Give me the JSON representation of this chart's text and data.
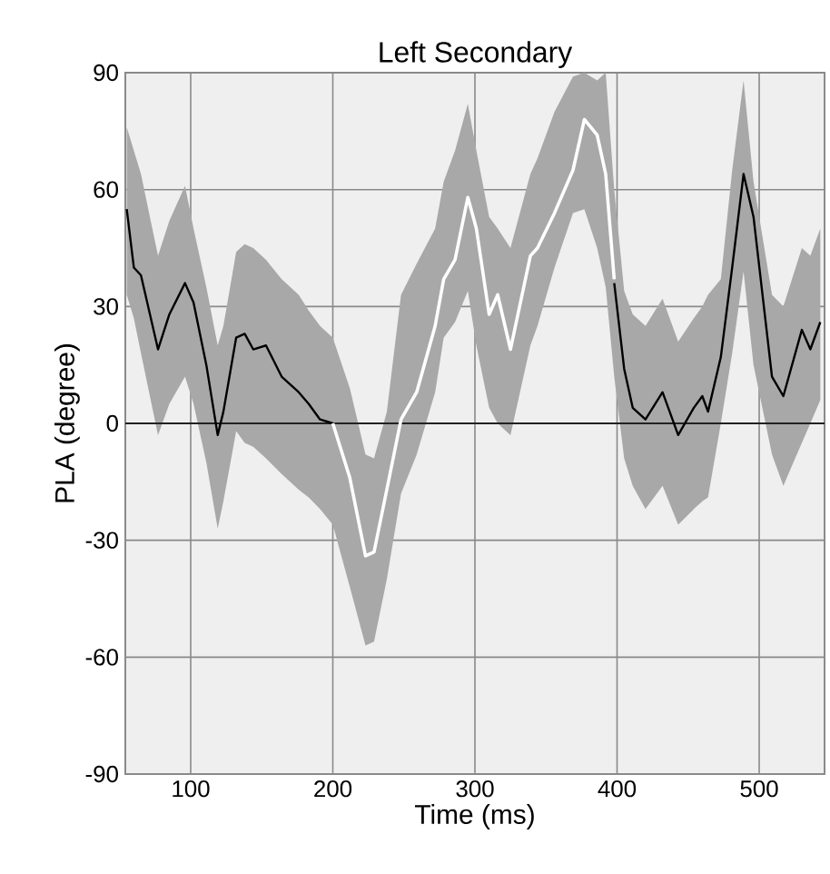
{
  "chart_data": {
    "type": "line",
    "title": "Left Secondary",
    "xlabel": "Time (ms)",
    "ylabel": "PLA (degree)",
    "x": [
      55,
      60,
      65,
      77,
      85,
      96,
      102,
      111,
      119,
      123,
      132,
      138,
      144,
      153,
      164,
      176,
      183,
      191,
      200,
      212,
      223,
      229,
      238,
      248,
      259,
      272,
      278,
      286,
      295,
      301,
      310,
      316,
      325,
      339,
      344,
      356,
      369,
      377,
      386,
      392,
      398,
      405,
      411,
      420,
      432,
      443,
      454,
      460,
      464,
      473,
      481,
      489,
      496,
      509,
      517,
      530,
      536,
      543
    ],
    "series": [
      {
        "color": "#000000",
        "values": [
          55,
          40,
          38,
          19,
          28,
          36,
          31,
          15,
          -3,
          3,
          22,
          23,
          19,
          20,
          12,
          8,
          5,
          1,
          0,
          null,
          null,
          null,
          null,
          null,
          null,
          null,
          null,
          null,
          null,
          null,
          null,
          null,
          null,
          null,
          null,
          null,
          null,
          null,
          null,
          null,
          36,
          14,
          4,
          1,
          8,
          -3,
          4,
          7,
          3,
          17,
          40,
          64,
          53,
          12,
          7,
          24,
          19,
          26
        ],
        "lower": [
          33,
          27,
          18,
          -3,
          5,
          12,
          5,
          -10,
          -27,
          -20,
          -2,
          -5,
          -6,
          -9,
          -13,
          -17,
          -19,
          -22,
          -26,
          -42,
          -57,
          -56,
          -40,
          -18,
          -8,
          8,
          22,
          26,
          34,
          20,
          4,
          0,
          -3,
          20,
          25,
          40,
          54,
          55,
          45,
          35,
          12,
          -9,
          -16,
          -22,
          -16,
          -26,
          -22,
          -20,
          -19,
          0,
          18,
          39,
          15,
          -8,
          -16,
          -5,
          0,
          6
        ],
        "upper": [
          76,
          70,
          64,
          43,
          52,
          61,
          50,
          35,
          20,
          25,
          44,
          46,
          45,
          42,
          37,
          33,
          29,
          25,
          22,
          9,
          -8,
          -9,
          3,
          33,
          41,
          50,
          62,
          70,
          82,
          70,
          53,
          50,
          45,
          64,
          68,
          80,
          89,
          90,
          88,
          90,
          60,
          34,
          28,
          25,
          32,
          21,
          27,
          30,
          33,
          37,
          65,
          88,
          62,
          33,
          30,
          45,
          43,
          50
        ]
      },
      {
        "color": "#ffffff",
        "values": [
          null,
          null,
          null,
          null,
          null,
          null,
          null,
          null,
          null,
          null,
          null,
          null,
          null,
          null,
          null,
          null,
          null,
          null,
          0,
          -14,
          -34,
          -33,
          -17,
          1,
          8,
          25,
          37,
          42,
          58,
          50,
          28,
          33,
          19,
          43,
          45,
          54,
          65,
          78,
          74,
          64,
          37,
          null,
          null,
          null,
          null,
          null,
          null,
          null,
          null,
          null,
          null,
          null,
          null,
          null,
          null,
          null,
          null,
          null
        ]
      }
    ],
    "xlim": [
      54,
      546
    ],
    "ylim": [
      -90,
      90
    ],
    "xticks": [
      100,
      200,
      300,
      400,
      500
    ],
    "yticks": [
      -90,
      -60,
      -30,
      0,
      30,
      60,
      90
    ],
    "grid": true,
    "ref_lines": [
      {
        "axis": "y",
        "value": 0,
        "color": "#222222"
      }
    ]
  }
}
